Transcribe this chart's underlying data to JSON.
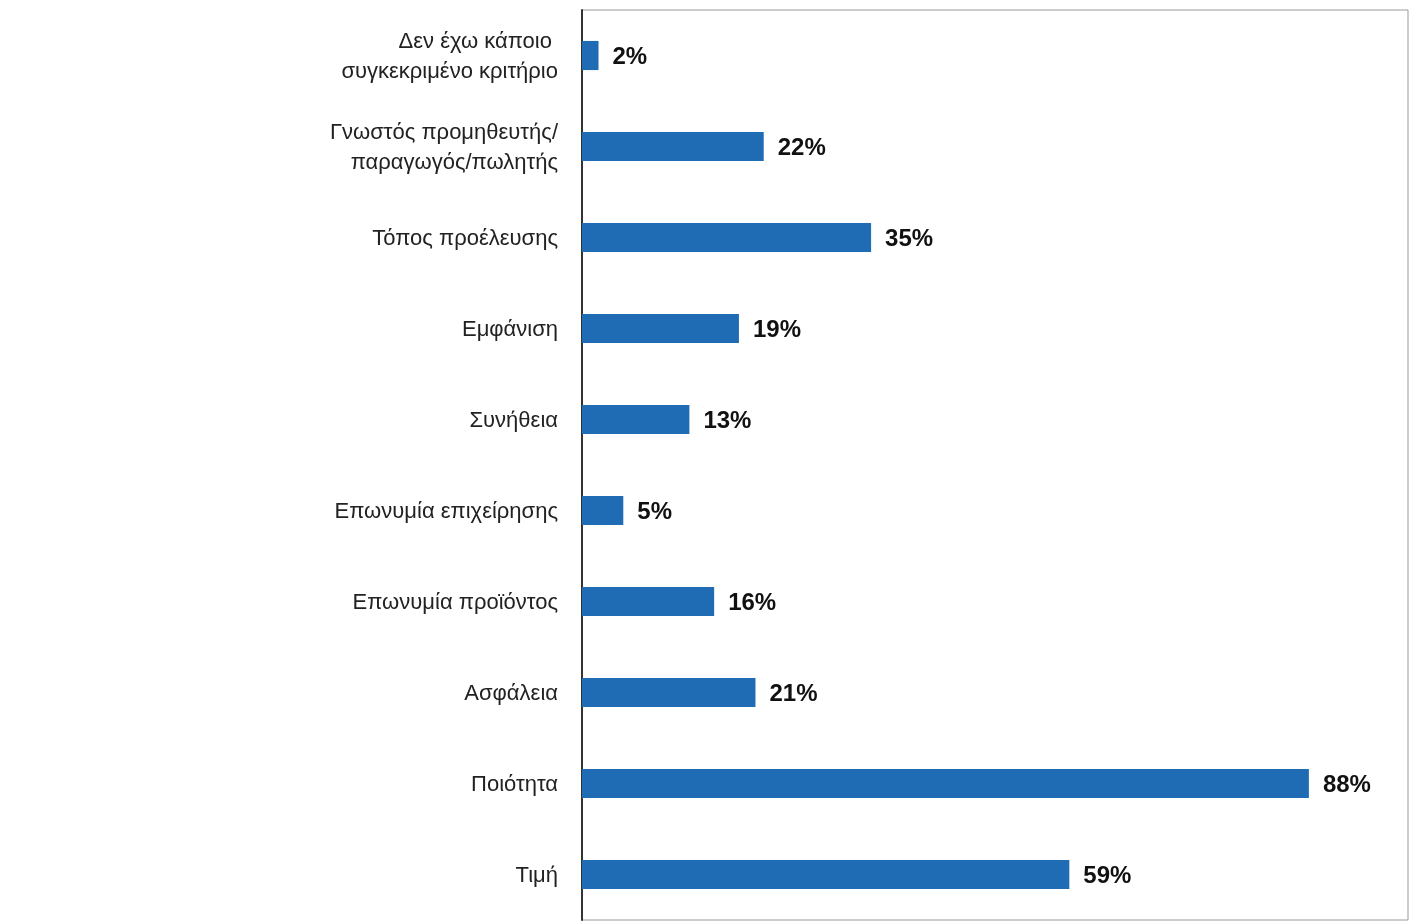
{
  "chart_data": {
    "type": "bar",
    "orientation": "horizontal",
    "categories": [
      "Δεν έχω κάποιο συγκεκριμένο κριτήριο",
      "Γνωστός προμηθευτής/παραγωγός/πωλητής",
      "Τόπος προέλευσης",
      "Εμφάνιση",
      "Συνήθεια",
      "Επωνυμία επιχείρησης",
      "Επωνυμία προϊόντος",
      "Ασφάλεια",
      "Ποιότητα",
      "Τιμή"
    ],
    "values": [
      2,
      22,
      35,
      19,
      13,
      5,
      16,
      21,
      88,
      59
    ],
    "value_labels": [
      "2%",
      "22%",
      "35%",
      "19%",
      "13%",
      "5%",
      "16%",
      "21%",
      "88%",
      "59%"
    ],
    "color": "#1f6cb4",
    "tick_labels": "y"
  }
}
